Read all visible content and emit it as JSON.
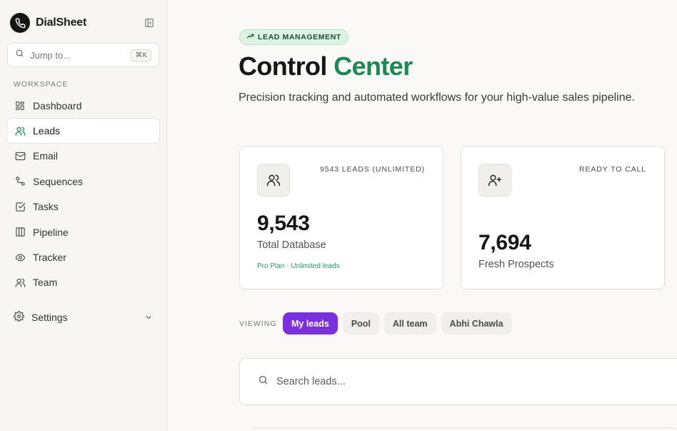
{
  "sidebar": {
    "brand": "DialSheet",
    "search_placeholder": "Jump to...",
    "search_shortcut": "⌘K",
    "section_label": "WORKSPACE",
    "items": [
      {
        "label": "Dashboard",
        "icon": "dashboard-icon"
      },
      {
        "label": "Leads",
        "icon": "users-icon",
        "active": true
      },
      {
        "label": "Email",
        "icon": "mail-icon"
      },
      {
        "label": "Sequences",
        "icon": "workflow-icon"
      },
      {
        "label": "Tasks",
        "icon": "check-square-icon"
      },
      {
        "label": "Pipeline",
        "icon": "columns-icon"
      },
      {
        "label": "Tracker",
        "icon": "eye-icon"
      },
      {
        "label": "Team",
        "icon": "team-icon"
      }
    ],
    "settings_label": "Settings"
  },
  "header": {
    "badge": "LEAD MANAGEMENT",
    "title_main": "Control",
    "title_accent": "Center",
    "subtitle": "Precision tracking and automated workflows for your high-value sales pipeline."
  },
  "stats": [
    {
      "tag": "9543 LEADS (UNLIMITED)",
      "value": "9,543",
      "label": "Total Database",
      "note": "Pro Plan - Unlimited leads"
    },
    {
      "tag": "READY TO CALL",
      "value": "7,694",
      "label": "Fresh Prospects"
    }
  ],
  "filters": {
    "label": "VIEWING",
    "options": [
      "My leads",
      "Pool",
      "All team",
      "Abhi Chawla"
    ],
    "selected": "My leads"
  },
  "lead_search": {
    "placeholder": "Search leads..."
  },
  "colors": {
    "accent_green": "#1a8a52",
    "accent_purple": "#7c2fe0",
    "sidebar_bg": "#f7f6f3"
  }
}
